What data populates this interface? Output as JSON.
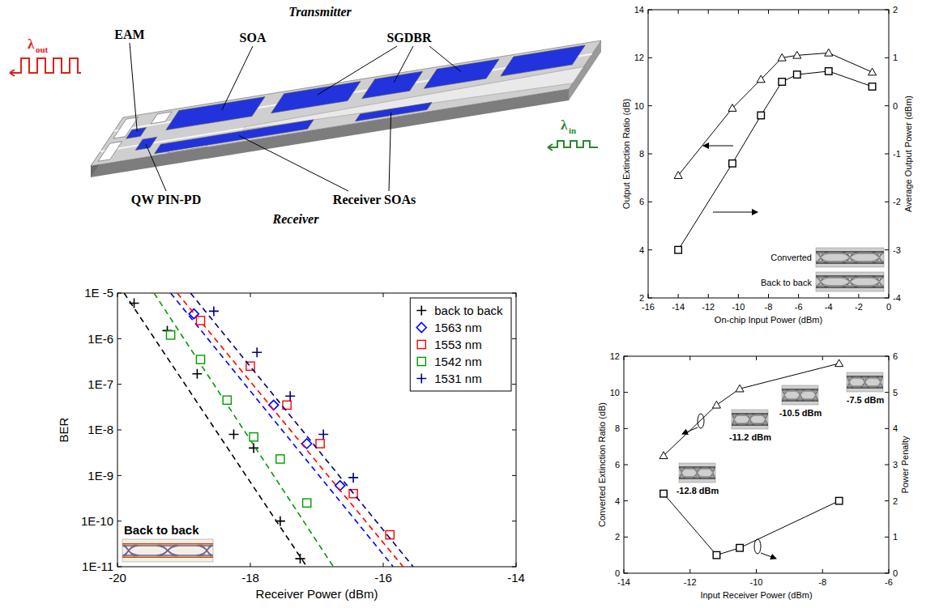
{
  "diagram": {
    "transmitter": "Transmitter",
    "receiver": "Receiver",
    "eam": "EAM",
    "transmitter_soa": "SOA",
    "sgdbr": "SGDBR",
    "photodiode": "QW PIN-PD",
    "receiver_soas": "Receiver SOAs",
    "lambda_out": {
      "symbol": "λ",
      "subscript": "out"
    },
    "lambda_in": {
      "symbol": "λ",
      "subscript": "in"
    }
  },
  "chart_data": [
    {
      "type": "scatter",
      "x_label": "Receiver Power (dBm)",
      "y_label": "BER",
      "log": "y",
      "grid": false,
      "legend": "upper right",
      "xlim": [
        -20,
        -14
      ],
      "xticks": [
        -20,
        -18,
        -16,
        -14
      ],
      "ylim": [
        1e-11,
        1e-05
      ],
      "yticks": [
        {
          "value": 1e-05,
          "label": "1E -5"
        },
        {
          "value": 1e-06,
          "label": "1E-6"
        },
        {
          "value": 1e-07,
          "label": "1E-7"
        },
        {
          "value": 1e-08,
          "label": "1E-8"
        },
        {
          "value": 1e-09,
          "label": "1E-9"
        },
        {
          "value": 1e-10,
          "label": "1E-10"
        },
        {
          "value": 1e-11,
          "label": "1E-11"
        }
      ],
      "annotations": [
        "Back to back"
      ],
      "series": [
        {
          "name": "back to back",
          "color": "#000000",
          "marker": "plus",
          "line_style": "dashed",
          "x": [
            -19.75,
            -19.25,
            -18.8,
            -18.25,
            -17.95,
            -17.55,
            -17.25
          ],
          "values": [
            6e-06,
            1.5e-06,
            1.7e-07,
            8e-09,
            4e-09,
            1e-10,
            1.5e-11
          ],
          "fit_x": [
            -19.9,
            -17.15
          ],
          "fit_values": [
            1e-05,
            1e-11
          ]
        },
        {
          "name": "1563 nm",
          "color": "#0000ff",
          "marker": "diamond",
          "line_style": "dashed",
          "x": [
            -18.85,
            -17.65,
            -17.15,
            -16.65
          ],
          "values": [
            3.5e-06,
            3.5e-08,
            5e-09,
            6e-10
          ],
          "fit_x": [
            -19.2,
            -15.85
          ],
          "fit_values": [
            1e-05,
            1e-11
          ]
        },
        {
          "name": "1553 nm",
          "color": "#ff0000",
          "marker": "square",
          "line_style": "dashed",
          "x": [
            -18.75,
            -18.0,
            -17.45,
            -16.95,
            -16.45,
            -15.9
          ],
          "values": [
            2.5e-06,
            2.5e-07,
            3.5e-08,
            5e-09,
            4e-10,
            5e-11
          ],
          "fit_x": [
            -19.1,
            -15.7
          ],
          "fit_values": [
            1e-05,
            1e-11
          ]
        },
        {
          "name": "1542 nm",
          "color": "#009900",
          "marker": "square",
          "line_style": "dashed",
          "x": [
            -19.2,
            -18.75,
            -18.35,
            -17.95,
            -17.55,
            -17.15
          ],
          "values": [
            1.2e-06,
            3.5e-07,
            4.5e-08,
            7e-09,
            2.3e-09,
            2.5e-10
          ],
          "fit_x": [
            -19.45,
            -16.75
          ],
          "fit_values": [
            1e-05,
            1e-11
          ]
        },
        {
          "name": "1531 nm",
          "color": "#000080",
          "marker": "plus",
          "line_style": "dashed",
          "x": [
            -18.55,
            -17.9,
            -17.4,
            -16.9,
            -16.45
          ],
          "values": [
            4e-06,
            5e-07,
            5.5e-08,
            8e-09,
            9e-10
          ],
          "fit_x": [
            -18.9,
            -15.55
          ],
          "fit_values": [
            1e-05,
            1e-11
          ]
        }
      ]
    },
    {
      "type": "line",
      "x_label": "On-chip Input Power (dBm)",
      "y_label": "Output Extinction Ratio (dB)",
      "y2_label": "Average Output Power (dBm)",
      "grid": false,
      "xlim": [
        -16,
        0
      ],
      "xticks": [
        -16,
        -14,
        -12,
        -10,
        -8,
        -6,
        -4,
        -2,
        0
      ],
      "ylim": [
        2,
        14
      ],
      "yticks": [
        2,
        4,
        6,
        8,
        10,
        12,
        14
      ],
      "y2lim": [
        -4,
        2
      ],
      "y2ticks": [
        -4,
        -3,
        -2,
        -1,
        0,
        1,
        2
      ],
      "annotations": [
        "Converted",
        "Back to back"
      ],
      "series": [
        {
          "color": "#000000",
          "marker": "triangle",
          "line_style": "solid",
          "x": [
            -14,
            -10.4,
            -8.5,
            -7.1,
            -6.1,
            -4,
            -1.1
          ],
          "values": [
            7.1,
            9.9,
            11.1,
            12.0,
            12.1,
            12.2,
            11.4
          ]
        },
        {
          "color": "#000000",
          "marker": "square",
          "line_style": "solid",
          "axis": "y2",
          "x": [
            -14,
            -10.4,
            -8.5,
            -7.1,
            -6.1,
            -4,
            -1.1
          ],
          "values": [
            -3.0,
            -1.2,
            -0.2,
            0.5,
            0.65,
            0.72,
            0.4
          ]
        }
      ]
    },
    {
      "type": "line",
      "x_label": "Input Receiver Power (dBm)",
      "y_label": "Converted Extinction Ratio (dB)",
      "y2_label": "Power Penalty",
      "grid": false,
      "xlim": [
        -14,
        -6
      ],
      "xticks": [
        -14,
        -12,
        -10,
        -8,
        -6
      ],
      "ylim": [
        0,
        12
      ],
      "yticks": [
        0,
        2,
        4,
        6,
        8,
        10,
        12
      ],
      "y2lim": [
        0,
        6
      ],
      "y2ticks": [
        0,
        1,
        2,
        3,
        4,
        5,
        6
      ],
      "annotations": [
        "-7.5 dBm",
        "-10.5 dBm",
        "-11.2 dBm",
        "-12.8 dBm"
      ],
      "series": [
        {
          "color": "#000000",
          "marker": "triangle",
          "line_style": "solid",
          "x": [
            -12.8,
            -11.2,
            -10.5,
            -7.5
          ],
          "values": [
            6.5,
            9.3,
            10.2,
            11.6
          ]
        },
        {
          "color": "#000000",
          "marker": "square",
          "line_style": "solid",
          "axis": "y2",
          "x": [
            -12.8,
            -11.2,
            -10.5,
            -7.5
          ],
          "values": [
            2.2,
            0.5,
            0.7,
            2.0
          ]
        }
      ]
    }
  ]
}
